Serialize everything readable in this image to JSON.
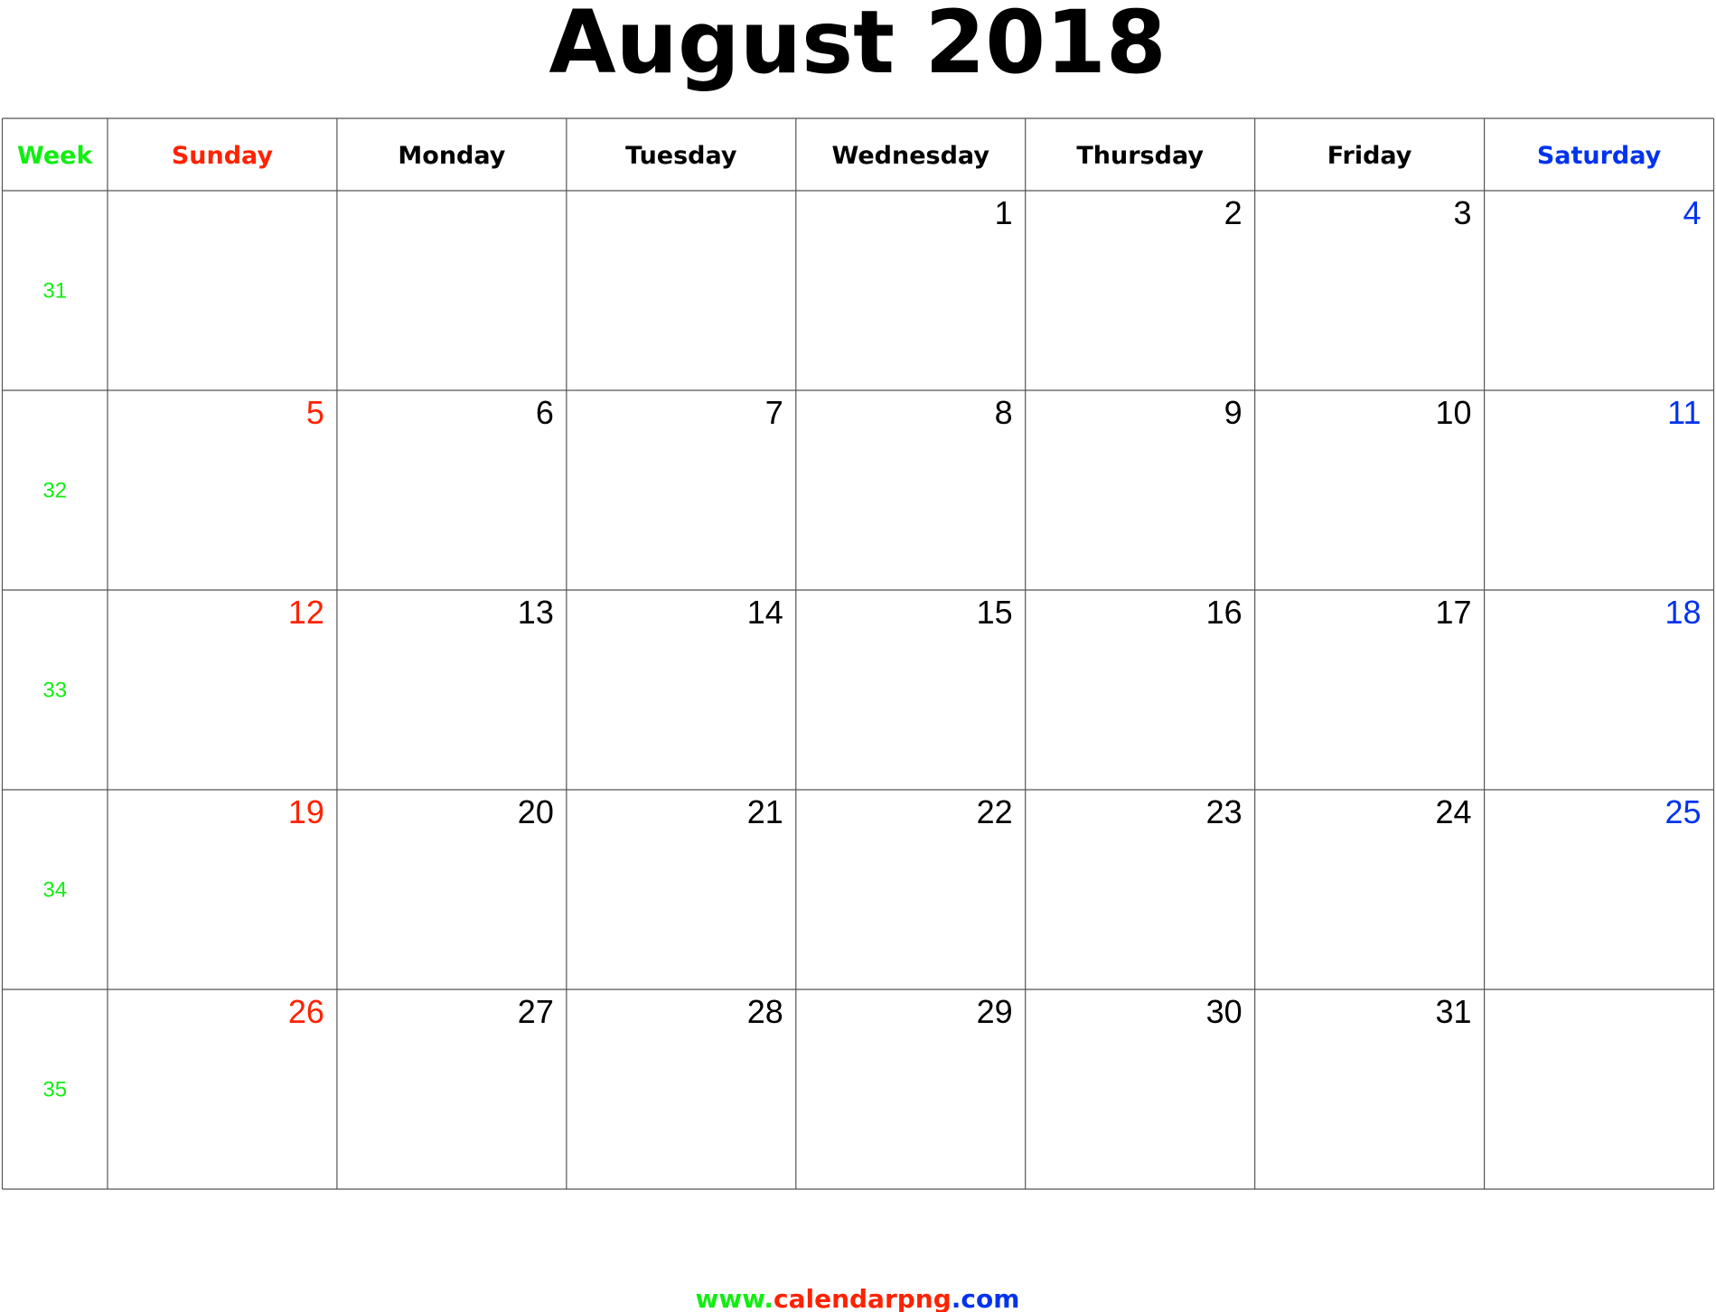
{
  "title": "August 2018",
  "headers": {
    "week": "Week",
    "days": [
      "Sunday",
      "Monday",
      "Tuesday",
      "Wednesday",
      "Thursday",
      "Friday",
      "Saturday"
    ]
  },
  "rows": [
    {
      "week": 31,
      "days": [
        null,
        null,
        null,
        1,
        2,
        3,
        4
      ]
    },
    {
      "week": 32,
      "days": [
        5,
        6,
        7,
        8,
        9,
        10,
        11
      ]
    },
    {
      "week": 33,
      "days": [
        12,
        13,
        14,
        15,
        16,
        17,
        18
      ]
    },
    {
      "week": 34,
      "days": [
        19,
        20,
        21,
        22,
        23,
        24,
        25
      ]
    },
    {
      "week": 35,
      "days": [
        26,
        27,
        28,
        29,
        30,
        31,
        null
      ]
    }
  ],
  "footer": {
    "prefix": "www.",
    "domain": "calendarpng",
    "suffix": ".com"
  }
}
